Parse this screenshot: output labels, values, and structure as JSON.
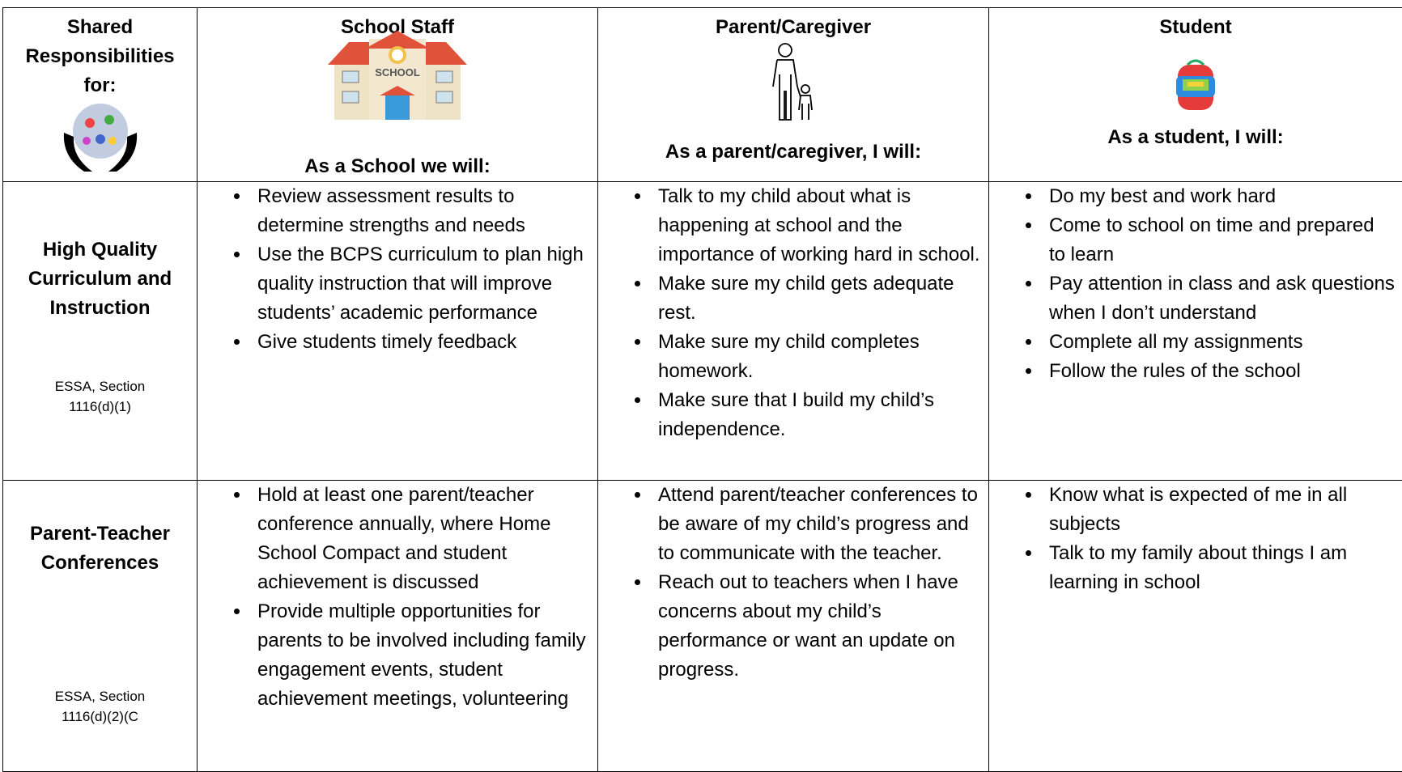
{
  "header": {
    "corner": "Shared Responsibilities for:",
    "columns": [
      {
        "title": "School Staff",
        "subtitle": "As a School we will:",
        "sign": "SCHOOL"
      },
      {
        "title": "Parent/Caregiver",
        "subtitle": "As a parent/caregiver, I will:"
      },
      {
        "title": "Student",
        "subtitle": "As a student, I will:"
      }
    ]
  },
  "rows": [
    {
      "label": "High Quality Curriculum and Instruction",
      "citation": "ESSA, Section 1116(d)(1)",
      "cells": [
        [
          "Review assessment results to determine strengths and needs",
          "Use the BCPS curriculum to plan high quality instruction that will improve students’ academic performance",
          "Give students timely feedback"
        ],
        [
          "Talk to my child about what is happening at school and the importance of working hard in school.",
          "Make sure my child gets adequate rest.",
          "Make sure my child completes homework.",
          "Make sure that I build my child’s independence."
        ],
        [
          "Do my best and work hard",
          "Come to school on time and prepared to learn",
          "Pay attention in class and ask questions when I don’t understand",
          "Complete all my assignments",
          "Follow the rules of the school"
        ]
      ]
    },
    {
      "label": "Parent-Teacher Conferences",
      "citation": "ESSA, Section 1116(d)(2)(C",
      "cells": [
        [
          "Hold at least one parent/teacher conference annually, where Home School Compact and student achievement is discussed",
          "Provide multiple opportunities for parents to be involved including family engagement events, student achievement meetings, volunteering"
        ],
        [
          "Attend parent/teacher conferences to be aware of my child’s progress and to communicate with the teacher.",
          "Reach out to teachers when I have concerns about my child’s performance or want an update on progress."
        ],
        [
          "Know what is expected of me in all subjects",
          "Talk to my family about things I am learning in school"
        ]
      ]
    }
  ]
}
